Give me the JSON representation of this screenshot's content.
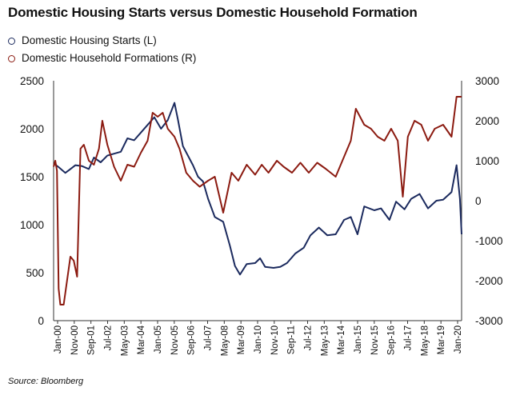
{
  "title": "Domestic Housing Starts versus Domestic Household Formation",
  "source": "Source: Bloomberg",
  "colors": {
    "starts": "#1b2a5e",
    "formations": "#8b1a10",
    "axis": "#333333"
  },
  "chart_data": {
    "type": "line",
    "title": "Domestic Housing Starts versus Domestic Household Formation",
    "x_tick_labels": [
      "Jan-00",
      "Nov-00",
      "Sep-01",
      "Jul-02",
      "May-03",
      "Mar-04",
      "Jan-05",
      "Nov-05",
      "Sep-06",
      "Jul-07",
      "May-08",
      "Mar-09",
      "Jan-10",
      "Nov-10",
      "Sep-11",
      "Jul-12",
      "May-13",
      "Mar-14",
      "Jan-15",
      "Nov-15",
      "Sep-16",
      "Jul-17",
      "May-18",
      "Mar-19",
      "Jan-20"
    ],
    "y_left": {
      "ticks": [
        0,
        500,
        1000,
        1500,
        2000,
        2500
      ],
      "range": [
        0,
        2500
      ]
    },
    "y_right": {
      "ticks": [
        -3000,
        -2000,
        -1000,
        0,
        1000,
        2000,
        3000
      ],
      "range": [
        -3000,
        3000
      ]
    },
    "x_range": [
      "2000-01",
      "2020-04"
    ],
    "legend": "top-left",
    "series": [
      {
        "name": "Domestic Housing Starts (L)",
        "axis": "left",
        "points": [
          [
            "2000-01",
            1640
          ],
          [
            "2000-04",
            1600
          ],
          [
            "2000-08",
            1540
          ],
          [
            "2000-11",
            1580
          ],
          [
            "2001-02",
            1620
          ],
          [
            "2001-06",
            1610
          ],
          [
            "2001-10",
            1580
          ],
          [
            "2002-01",
            1700
          ],
          [
            "2002-05",
            1650
          ],
          [
            "2002-09",
            1720
          ],
          [
            "2003-01",
            1740
          ],
          [
            "2003-05",
            1760
          ],
          [
            "2003-09",
            1900
          ],
          [
            "2004-01",
            1880
          ],
          [
            "2004-05",
            1960
          ],
          [
            "2004-09",
            2040
          ],
          [
            "2005-01",
            2120
          ],
          [
            "2005-05",
            2000
          ],
          [
            "2005-09",
            2090
          ],
          [
            "2006-01",
            2270
          ],
          [
            "2006-03",
            2100
          ],
          [
            "2006-06",
            1820
          ],
          [
            "2006-09",
            1720
          ],
          [
            "2006-12",
            1620
          ],
          [
            "2007-03",
            1500
          ],
          [
            "2007-06",
            1450
          ],
          [
            "2007-09",
            1270
          ],
          [
            "2008-01",
            1080
          ],
          [
            "2008-06",
            1030
          ],
          [
            "2008-10",
            780
          ],
          [
            "2009-01",
            570
          ],
          [
            "2009-04",
            480
          ],
          [
            "2009-08",
            590
          ],
          [
            "2010-01",
            600
          ],
          [
            "2010-04",
            650
          ],
          [
            "2010-07",
            560
          ],
          [
            "2010-12",
            550
          ],
          [
            "2011-04",
            560
          ],
          [
            "2011-08",
            600
          ],
          [
            "2012-01",
            700
          ],
          [
            "2012-06",
            760
          ],
          [
            "2012-10",
            890
          ],
          [
            "2013-03",
            970
          ],
          [
            "2013-08",
            890
          ],
          [
            "2014-01",
            900
          ],
          [
            "2014-06",
            1050
          ],
          [
            "2014-10",
            1080
          ],
          [
            "2015-02",
            900
          ],
          [
            "2015-06",
            1190
          ],
          [
            "2015-12",
            1150
          ],
          [
            "2016-04",
            1170
          ],
          [
            "2016-09",
            1050
          ],
          [
            "2017-01",
            1240
          ],
          [
            "2017-06",
            1160
          ],
          [
            "2017-10",
            1270
          ],
          [
            "2018-03",
            1320
          ],
          [
            "2018-08",
            1170
          ],
          [
            "2019-01",
            1250
          ],
          [
            "2019-05",
            1260
          ],
          [
            "2019-10",
            1340
          ],
          [
            "2020-01",
            1620
          ],
          [
            "2020-03",
            1270
          ],
          [
            "2020-04",
            900
          ]
        ]
      },
      {
        "name": "Domestic Household Formations (R)",
        "axis": "right",
        "points": [
          [
            "2000-01",
            850
          ],
          [
            "2000-02",
            1000
          ],
          [
            "2000-03",
            750
          ],
          [
            "2000-04",
            -2200
          ],
          [
            "2000-05",
            -2600
          ],
          [
            "2000-07",
            -2600
          ],
          [
            "2000-09",
            -2000
          ],
          [
            "2000-11",
            -1400
          ],
          [
            "2001-01",
            -1500
          ],
          [
            "2001-03",
            -1900
          ],
          [
            "2001-05",
            1300
          ],
          [
            "2001-07",
            1400
          ],
          [
            "2001-10",
            1000
          ],
          [
            "2002-01",
            900
          ],
          [
            "2002-04",
            1300
          ],
          [
            "2002-06",
            2000
          ],
          [
            "2002-09",
            1400
          ],
          [
            "2003-01",
            850
          ],
          [
            "2003-05",
            500
          ],
          [
            "2003-09",
            900
          ],
          [
            "2004-01",
            850
          ],
          [
            "2004-05",
            1200
          ],
          [
            "2004-09",
            1500
          ],
          [
            "2004-12",
            2200
          ],
          [
            "2005-03",
            2100
          ],
          [
            "2005-06",
            2200
          ],
          [
            "2005-09",
            1800
          ],
          [
            "2006-01",
            1600
          ],
          [
            "2006-04",
            1300
          ],
          [
            "2006-08",
            700
          ],
          [
            "2006-12",
            500
          ],
          [
            "2007-04",
            350
          ],
          [
            "2007-09",
            500
          ],
          [
            "2008-01",
            600
          ],
          [
            "2008-06",
            -300
          ],
          [
            "2008-11",
            700
          ],
          [
            "2009-03",
            500
          ],
          [
            "2009-08",
            900
          ],
          [
            "2010-01",
            650
          ],
          [
            "2010-05",
            900
          ],
          [
            "2010-09",
            700
          ],
          [
            "2011-02",
            1000
          ],
          [
            "2011-06",
            850
          ],
          [
            "2011-11",
            700
          ],
          [
            "2012-04",
            950
          ],
          [
            "2012-09",
            700
          ],
          [
            "2013-02",
            950
          ],
          [
            "2013-07",
            800
          ],
          [
            "2014-01",
            600
          ],
          [
            "2014-06",
            1100
          ],
          [
            "2014-10",
            1500
          ],
          [
            "2015-01",
            2300
          ],
          [
            "2015-06",
            1900
          ],
          [
            "2015-10",
            1800
          ],
          [
            "2016-02",
            1600
          ],
          [
            "2016-06",
            1500
          ],
          [
            "2016-10",
            1800
          ],
          [
            "2017-02",
            1500
          ],
          [
            "2017-05",
            100
          ],
          [
            "2017-08",
            1600
          ],
          [
            "2017-12",
            2000
          ],
          [
            "2018-04",
            1900
          ],
          [
            "2018-08",
            1500
          ],
          [
            "2018-12",
            1800
          ],
          [
            "2019-05",
            1900
          ],
          [
            "2019-10",
            1600
          ],
          [
            "2020-01",
            2600
          ],
          [
            "2020-04",
            2600
          ]
        ]
      }
    ]
  }
}
